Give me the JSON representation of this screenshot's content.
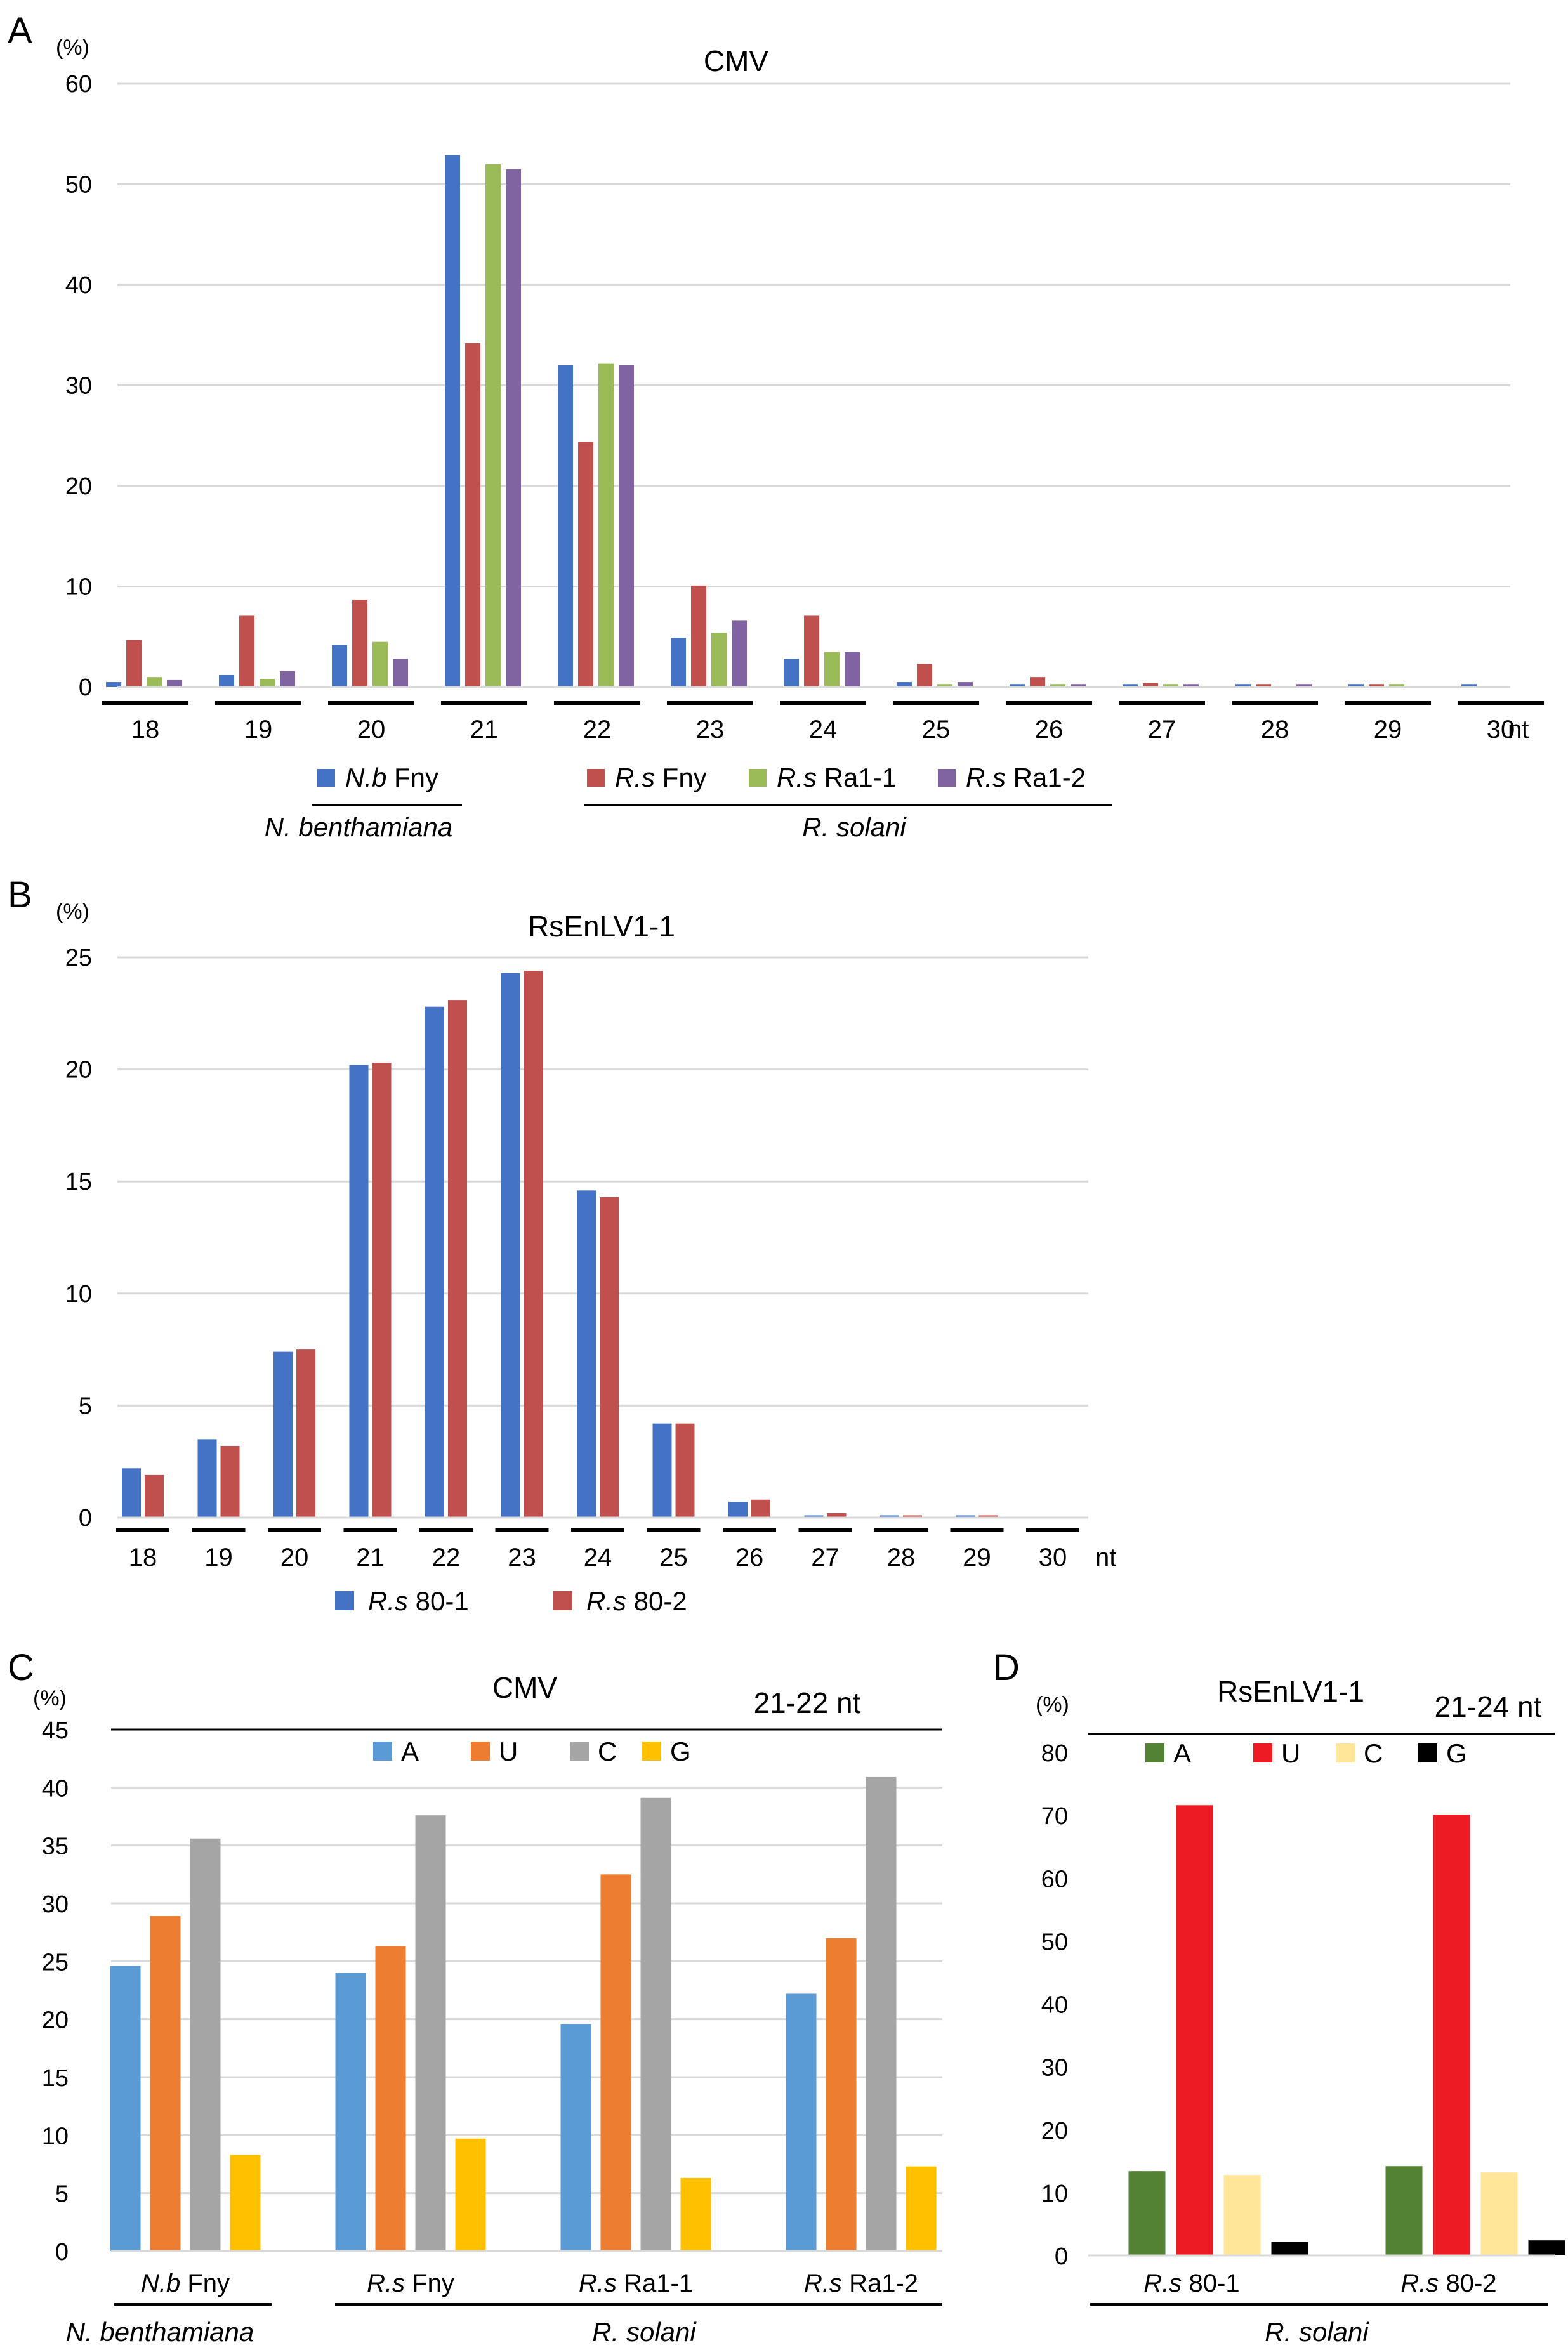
{
  "chart_data": [
    {
      "id": "A",
      "panel_label": "A",
      "type": "bar",
      "title": "CMV",
      "y_unit": "(%)",
      "xlabel": "nt",
      "ylim": [
        0,
        60
      ],
      "yticks": [
        0,
        10,
        20,
        30,
        40,
        50,
        60
      ],
      "grid": true,
      "categories": [
        "18",
        "19",
        "20",
        "21",
        "22",
        "23",
        "24",
        "25",
        "26",
        "27",
        "28",
        "29",
        "30"
      ],
      "series": [
        {
          "name": "N.b Fny",
          "name_italic": "N.b",
          "name_rest": " Fny",
          "color": "#4472C4",
          "values": [
            0.5,
            1.2,
            4.2,
            52.9,
            32.0,
            4.9,
            2.8,
            0.5,
            0.3,
            0.3,
            0.3,
            0.3,
            0.3
          ]
        },
        {
          "name": "R.s Fny",
          "name_italic": "R.s",
          "name_rest": " Fny",
          "color": "#C0504D",
          "values": [
            4.7,
            7.1,
            8.7,
            34.2,
            24.4,
            10.1,
            7.1,
            2.3,
            1.0,
            0.4,
            0.3,
            0.3,
            0
          ]
        },
        {
          "name": "R.s Ra1-1",
          "name_italic": "R.s",
          "name_rest": " Ra1‑1",
          "color": "#9BBB59",
          "values": [
            1.0,
            0.8,
            4.5,
            52.0,
            32.2,
            5.4,
            3.5,
            0.3,
            0.3,
            0.3,
            0,
            0.3,
            0
          ]
        },
        {
          "name": "R.s Ra1-2",
          "name_italic": "R.s",
          "name_rest": " Ra1‑2",
          "color": "#8064A2",
          "values": [
            0.7,
            1.6,
            2.8,
            51.5,
            32.0,
            6.6,
            3.5,
            0.5,
            0.3,
            0.3,
            0.3,
            0,
            0
          ]
        }
      ],
      "groups": [
        {
          "label": "N. benthamiana",
          "series": [
            0
          ]
        },
        {
          "label": "R. solani",
          "series": [
            1,
            2,
            3
          ]
        }
      ]
    },
    {
      "id": "B",
      "panel_label": "B",
      "type": "bar",
      "title": "RsEnLV1‑1",
      "y_unit": "(%)",
      "xlabel": "nt",
      "ylim": [
        0,
        25
      ],
      "yticks": [
        0,
        5,
        10,
        15,
        20,
        25
      ],
      "grid": true,
      "categories": [
        "18",
        "19",
        "20",
        "21",
        "22",
        "23",
        "24",
        "25",
        "26",
        "27",
        "28",
        "29",
        "30"
      ],
      "series": [
        {
          "name": "R.s 80-1",
          "name_italic": "R.s",
          "name_rest": " 80‑1",
          "color": "#4472C4",
          "values": [
            2.2,
            3.5,
            7.4,
            20.2,
            22.8,
            24.3,
            14.6,
            4.2,
            0.7,
            0.1,
            0.1,
            0.1,
            0
          ]
        },
        {
          "name": "R.s 80-2",
          "name_italic": "R.s",
          "name_rest": " 80‑2",
          "color": "#C0504D",
          "values": [
            1.9,
            3.2,
            7.5,
            20.3,
            23.1,
            24.4,
            14.3,
            4.2,
            0.8,
            0.2,
            0.1,
            0.1,
            0
          ]
        }
      ]
    },
    {
      "id": "C",
      "panel_label": "C",
      "type": "bar",
      "title": "CMV",
      "subtitle": "21‑22 nt",
      "y_unit": "(%)",
      "ylim": [
        0,
        45
      ],
      "yticks": [
        0,
        5,
        10,
        15,
        20,
        25,
        30,
        35,
        40,
        45
      ],
      "grid": true,
      "categories": [
        "N.b Fny",
        "R.s Fny",
        "R.s Ra1-1",
        "R.s Ra1-2"
      ],
      "category_parts": [
        [
          "N.b",
          " Fny"
        ],
        [
          "R.s",
          " Fny"
        ],
        [
          "R.s",
          " Ra1‑1"
        ],
        [
          "R.s",
          " Ra1‑2"
        ]
      ],
      "series": [
        {
          "name": "A",
          "color": "#5B9BD5",
          "values": [
            24.6,
            24.0,
            19.6,
            22.2
          ]
        },
        {
          "name": "U",
          "color": "#ED7D31",
          "values": [
            28.9,
            26.3,
            32.5,
            27.0
          ]
        },
        {
          "name": "C",
          "color": "#A5A5A5",
          "values": [
            35.6,
            37.6,
            39.1,
            40.9
          ]
        },
        {
          "name": "G",
          "color": "#FFC000",
          "values": [
            8.3,
            9.7,
            6.3,
            7.3
          ]
        }
      ],
      "groups": [
        {
          "label": "N. benthamiana",
          "categories": [
            0
          ]
        },
        {
          "label": "R. solani",
          "categories": [
            1,
            2,
            3
          ]
        }
      ]
    },
    {
      "id": "D",
      "panel_label": "D",
      "type": "bar",
      "title": "RsEnLV1‑1",
      "subtitle": "21‑24 nt",
      "y_unit": "(%)",
      "ylim": [
        0,
        80
      ],
      "yticks": [
        0,
        10,
        20,
        30,
        40,
        50,
        60,
        70,
        80
      ],
      "grid": false,
      "categories": [
        "R.s 80-1",
        "R.s 80-2"
      ],
      "category_parts": [
        [
          "R.s",
          " 80‑1"
        ],
        [
          "R.s",
          " 80‑2"
        ]
      ],
      "series": [
        {
          "name": "A",
          "color": "#548235",
          "values": [
            13.4,
            14.2
          ]
        },
        {
          "name": "U",
          "color": "#ED1C24",
          "values": [
            71.6,
            70.1
          ]
        },
        {
          "name": "C",
          "color": "#FFE699",
          "values": [
            12.8,
            13.2
          ]
        },
        {
          "name": "G",
          "color": "#000000",
          "values": [
            2.2,
            2.4
          ]
        }
      ],
      "groups": [
        {
          "label": "R. solani",
          "categories": [
            0,
            1
          ]
        }
      ]
    }
  ]
}
